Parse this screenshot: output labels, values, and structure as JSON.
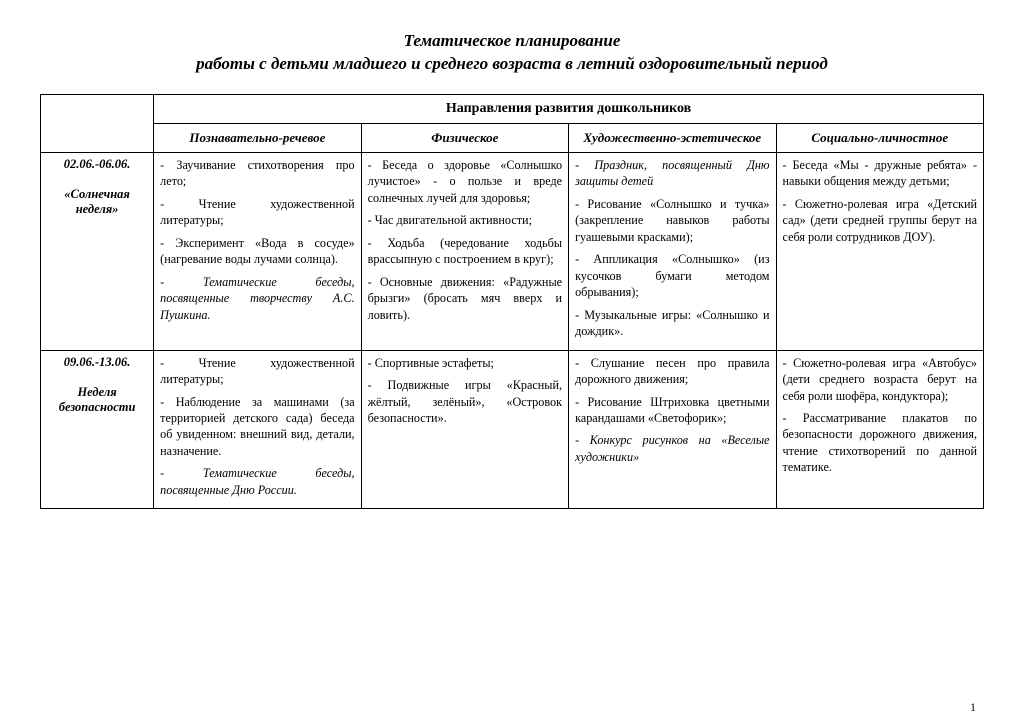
{
  "title_line1": "Тематическое планирование",
  "title_line2": "работы с детьми младшего и среднего возраста в летний оздоровительный период",
  "section_header": "Направления развития дошкольников",
  "columns": {
    "c1": "Познавательно-речевое",
    "c2": "Физическое",
    "c3": "Художественно-эстетическое",
    "c4": "Социально-личностное"
  },
  "rows": [
    {
      "date": "02.06.-06.06.",
      "name": "«Солнечная неделя»",
      "c1_p1": "- Заучивание стихотворения про лето;",
      "c1_p2": "- Чтение художественной литературы;",
      "c1_p3": "- Эксперимент «Вода в сосуде» (нагревание воды лучами солнца).",
      "c1_p4": "- Тематические беседы, посвященные творчеству А.С. Пушкина.",
      "c2_p1": "- Беседа о здоровье «Солнышко лучистое» - о пользе и вреде солнечных лучей для здоровья;",
      "c2_p2": "- Час двигательной активности;",
      "c2_p3": "- Ходьба (чередование ходьбы врассыпную с построением в круг);",
      "c2_p4": "- Основные движения: «Радужные брызги» (бросать мяч вверх и ловить).",
      "c3_p1": "- Праздник, посвященный Дню защиты детей",
      "c3_p2": "- Рисование «Солнышко и тучка» (закрепление навыков работы гуашевыми красками);",
      "c3_p3": "- Аппликация «Солнышко» (из кусочков бумаги методом обрывания);",
      "c3_p4": "- Музыкальные игры: «Солнышко и дождик».",
      "c4_p1": "- Беседа «Мы - дружные ребята» - навыки общения между детьми;",
      "c4_p2": "- Сюжетно-ролевая игра «Детский сад» (дети средней группы берут на себя роли сотрудников ДОУ)."
    },
    {
      "date": "09.06.-13.06.",
      "name": "Неделя безопасности",
      "c1_p1": "- Чтение художественной литературы;",
      "c1_p2": "- Наблюдение за машинами (за территорией детского сада) беседа об увиденном: внешний вид, детали, назначение.",
      "c1_p3": "- Тематические беседы, посвященные Дню России.",
      "c2_p1": "- Спортивные эстафеты;",
      "c2_p2": "- Подвижные игры «Красный, жёлтый, зелёный», «Островок безопасности».",
      "c3_p1": "- Слушание песен про правила дорожного движения;",
      "c3_p2": "- Рисование Штриховка цветными карандашами «Светофорик»;",
      "c3_p3": "- Конкурс рисунков на «Веселые художники»",
      "c4_p1": "- Сюжетно-ролевая игра «Автобус» (дети среднего возраста берут на себя роли шофёра, кондуктора);",
      "c4_p2": "- Рассматривание плакатов по безопасности дорожного движения, чтение стихотворений по данной тематике."
    }
  ],
  "page_number": "1"
}
